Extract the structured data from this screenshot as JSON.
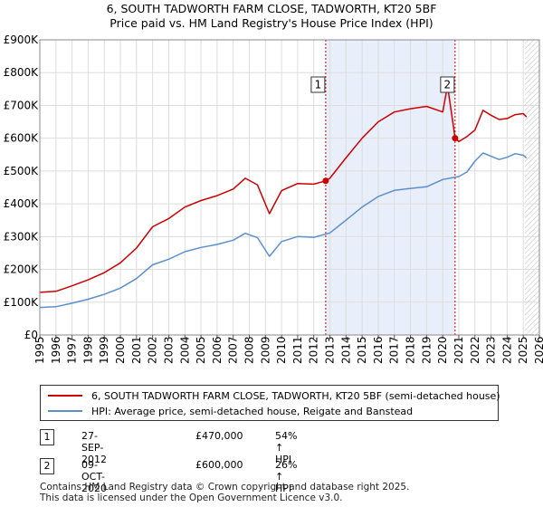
{
  "chart_data": {
    "type": "line",
    "title": "6, SOUTH TADWORTH FARM CLOSE, TADWORTH, KT20 5BF",
    "subtitle": "Price paid vs. HM Land Registry's House Price Index (HPI)",
    "xlim": [
      1995,
      2026
    ],
    "ylim": [
      0,
      900000
    ],
    "x_ticks": [
      "1995",
      "1996",
      "1997",
      "1998",
      "1999",
      "2000",
      "2001",
      "2002",
      "2003",
      "2004",
      "2005",
      "2006",
      "2007",
      "2008",
      "2009",
      "2010",
      "2011",
      "2012",
      "2013",
      "2014",
      "2015",
      "2016",
      "2017",
      "2018",
      "2019",
      "2020",
      "2021",
      "2022",
      "2023",
      "2024",
      "2025",
      "2026"
    ],
    "y_ticks": [
      {
        "value": 0,
        "label": "£0"
      },
      {
        "value": 100000,
        "label": "£100K"
      },
      {
        "value": 200000,
        "label": "£200K"
      },
      {
        "value": 300000,
        "label": "£300K"
      },
      {
        "value": 400000,
        "label": "£400K"
      },
      {
        "value": 500000,
        "label": "£500K"
      },
      {
        "value": 600000,
        "label": "£600K"
      },
      {
        "value": 700000,
        "label": "£700K"
      },
      {
        "value": 800000,
        "label": "£800K"
      },
      {
        "value": 900000,
        "label": "£900K"
      }
    ],
    "shaded_region": [
      2012.74,
      2020.77
    ],
    "hatched_region": [
      2025.1,
      2026
    ],
    "series": [
      {
        "name": "6, SOUTH TADWORTH FARM CLOSE, TADWORTH, KT20 5BF (semi-detached house)",
        "color": "#cc0000",
        "x": [
          1995,
          1996,
          1997,
          1998,
          1999,
          2000,
          2001,
          2002,
          2003,
          2004,
          2005,
          2006,
          2007,
          2007.75,
          2008.5,
          2009.25,
          2010,
          2011,
          2012,
          2012.74,
          2013,
          2014,
          2015,
          2016,
          2017,
          2018,
          2019,
          2020,
          2020.3,
          2020.77,
          2021,
          2021.5,
          2022,
          2022.5,
          2023,
          2023.5,
          2024,
          2024.5,
          2025,
          2025.2
        ],
        "values": [
          130000,
          133000,
          150000,
          168000,
          190000,
          220000,
          265000,
          330000,
          355000,
          390000,
          410000,
          425000,
          445000,
          478000,
          458000,
          370000,
          440000,
          462000,
          460000,
          470000,
          478000,
          540000,
          600000,
          650000,
          680000,
          690000,
          697000,
          680000,
          760000,
          600000,
          590000,
          605000,
          625000,
          685000,
          670000,
          657000,
          660000,
          672000,
          675000,
          665000
        ]
      },
      {
        "name": "HPI: Average price, semi-detached house, Reigate and Banstead",
        "color": "#5b8fd0",
        "x": [
          1995,
          1996,
          1997,
          1998,
          1999,
          2000,
          2001,
          2002,
          2003,
          2004,
          2005,
          2006,
          2007,
          2007.75,
          2008.5,
          2009.25,
          2010,
          2011,
          2012,
          2013,
          2014,
          2015,
          2016,
          2017,
          2018,
          2019,
          2020,
          2021,
          2021.5,
          2022,
          2022.5,
          2023,
          2023.5,
          2024,
          2024.5,
          2025,
          2025.2
        ],
        "values": [
          84000,
          86000,
          97000,
          109000,
          124000,
          143000,
          172000,
          214000,
          231000,
          254000,
          267000,
          276000,
          289000,
          310000,
          297000,
          240000,
          285000,
          300000,
          298000,
          311000,
          350000,
          390000,
          422000,
          441000,
          447000,
          452000,
          474000,
          483000,
          497000,
          530000,
          555000,
          545000,
          535000,
          542000,
          553000,
          548000,
          540000
        ]
      }
    ],
    "transactions": [
      {
        "id": "1",
        "date": "27-SEP-2012",
        "x": 2012.74,
        "price": 470000,
        "price_label": "£470,000",
        "hpi_label": "54% ↑ HPI"
      },
      {
        "id": "2",
        "date": "09-OCT-2020",
        "x": 2020.77,
        "price": 600000,
        "price_label": "£600,000",
        "hpi_label": "26% ↑ HPI"
      }
    ]
  },
  "footer": {
    "line1": "Contains HM Land Registry data © Crown copyright and database right 2025.",
    "line2": "This data is licensed under the Open Government Licence v3.0."
  }
}
